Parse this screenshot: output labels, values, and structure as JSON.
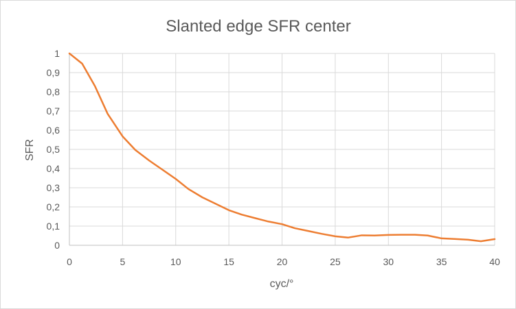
{
  "chart_data": {
    "type": "line",
    "title": "Slanted edge SFR center",
    "xlabel": "cyc/°",
    "ylabel": "SFR",
    "xlim": [
      0,
      40
    ],
    "ylim": [
      0,
      1
    ],
    "xticks": [
      0,
      5,
      10,
      15,
      20,
      25,
      30,
      35,
      40
    ],
    "xtick_labels": [
      "0",
      "5",
      "10",
      "15",
      "20",
      "25",
      "30",
      "35",
      "40"
    ],
    "yticks": [
      0,
      0.1,
      0.2,
      0.3,
      0.4,
      0.5,
      0.6,
      0.7,
      0.8,
      0.9,
      1
    ],
    "ytick_labels": [
      "0",
      "0,1",
      "0,2",
      "0,3",
      "0,4",
      "0,5",
      "0,6",
      "0,7",
      "0,8",
      "0,9",
      "1"
    ],
    "grid": true,
    "legend": "none",
    "series": [
      {
        "color": "#ED7D31",
        "x": [
          0,
          1.2,
          2.4,
          3.6,
          5.0,
          6.2,
          7.5,
          8.7,
          10.0,
          11.2,
          12.5,
          13.7,
          15.0,
          16.2,
          17.5,
          18.7,
          20.0,
          21.2,
          22.5,
          23.7,
          25.0,
          26.2,
          27.5,
          28.7,
          30.0,
          31.2,
          32.5,
          33.7,
          35.0,
          36.2,
          37.5,
          38.7,
          40.0
        ],
        "y": [
          1.0,
          0.947,
          0.83,
          0.685,
          0.568,
          0.497,
          0.442,
          0.396,
          0.346,
          0.293,
          0.25,
          0.218,
          0.183,
          0.16,
          0.141,
          0.124,
          0.11,
          0.089,
          0.074,
          0.06,
          0.047,
          0.04,
          0.052,
          0.051,
          0.054,
          0.055,
          0.055,
          0.051,
          0.036,
          0.033,
          0.029,
          0.021,
          0.032
        ]
      }
    ]
  }
}
